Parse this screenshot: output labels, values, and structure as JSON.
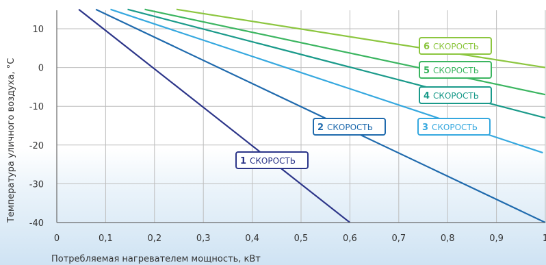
{
  "chart_data": {
    "type": "line",
    "xlabel": "Потребляемая нагревателем мощность, кВт",
    "ylabel": "Температура уличного воздуха, °С",
    "xlim": [
      0,
      1
    ],
    "ylim": [
      -40,
      15
    ],
    "x_ticks": [
      "0",
      "0,1",
      "0,2",
      "0,3",
      "0,4",
      "0,5",
      "0,6",
      "0,7",
      "0,8",
      "0,9",
      "1"
    ],
    "y_ticks": [
      "10",
      "0",
      "-10",
      "-20",
      "-30",
      "-40"
    ],
    "grid": true,
    "series": [
      {
        "name": "1 СКОРОСТЬ",
        "number": "1",
        "text": "СКОРОСТЬ",
        "color": "#2c3589",
        "x": [
          0.045,
          0.6
        ],
        "y": [
          15,
          -40
        ]
      },
      {
        "name": "2 СКОРОСТЬ",
        "number": "2",
        "text": "СКОРОСТЬ",
        "color": "#1f6aad",
        "x": [
          0.08,
          1.0
        ],
        "y": [
          15,
          -40
        ]
      },
      {
        "name": "3 СКОРОСТЬ",
        "number": "3",
        "text": "СКОРОСТЬ",
        "color": "#35a8df",
        "x": [
          0.11,
          0.995
        ],
        "y": [
          15,
          -22
        ]
      },
      {
        "name": "4 СКОРОСТЬ",
        "number": "4",
        "text": "СКОРОСТЬ",
        "color": "#1a9a8a",
        "x": [
          0.145,
          1.0
        ],
        "y": [
          15,
          -13
        ]
      },
      {
        "name": "5 СКОРОСТЬ",
        "number": "5",
        "text": "СКОРОСТЬ",
        "color": "#3bb560",
        "x": [
          0.18,
          1.0
        ],
        "y": [
          15,
          -7
        ]
      },
      {
        "name": "6 СКОРОСТЬ",
        "number": "6",
        "text": "СКОРОСТЬ",
        "color": "#8cc63f",
        "x": [
          0.245,
          1.0
        ],
        "y": [
          15,
          0
        ]
      }
    ]
  }
}
